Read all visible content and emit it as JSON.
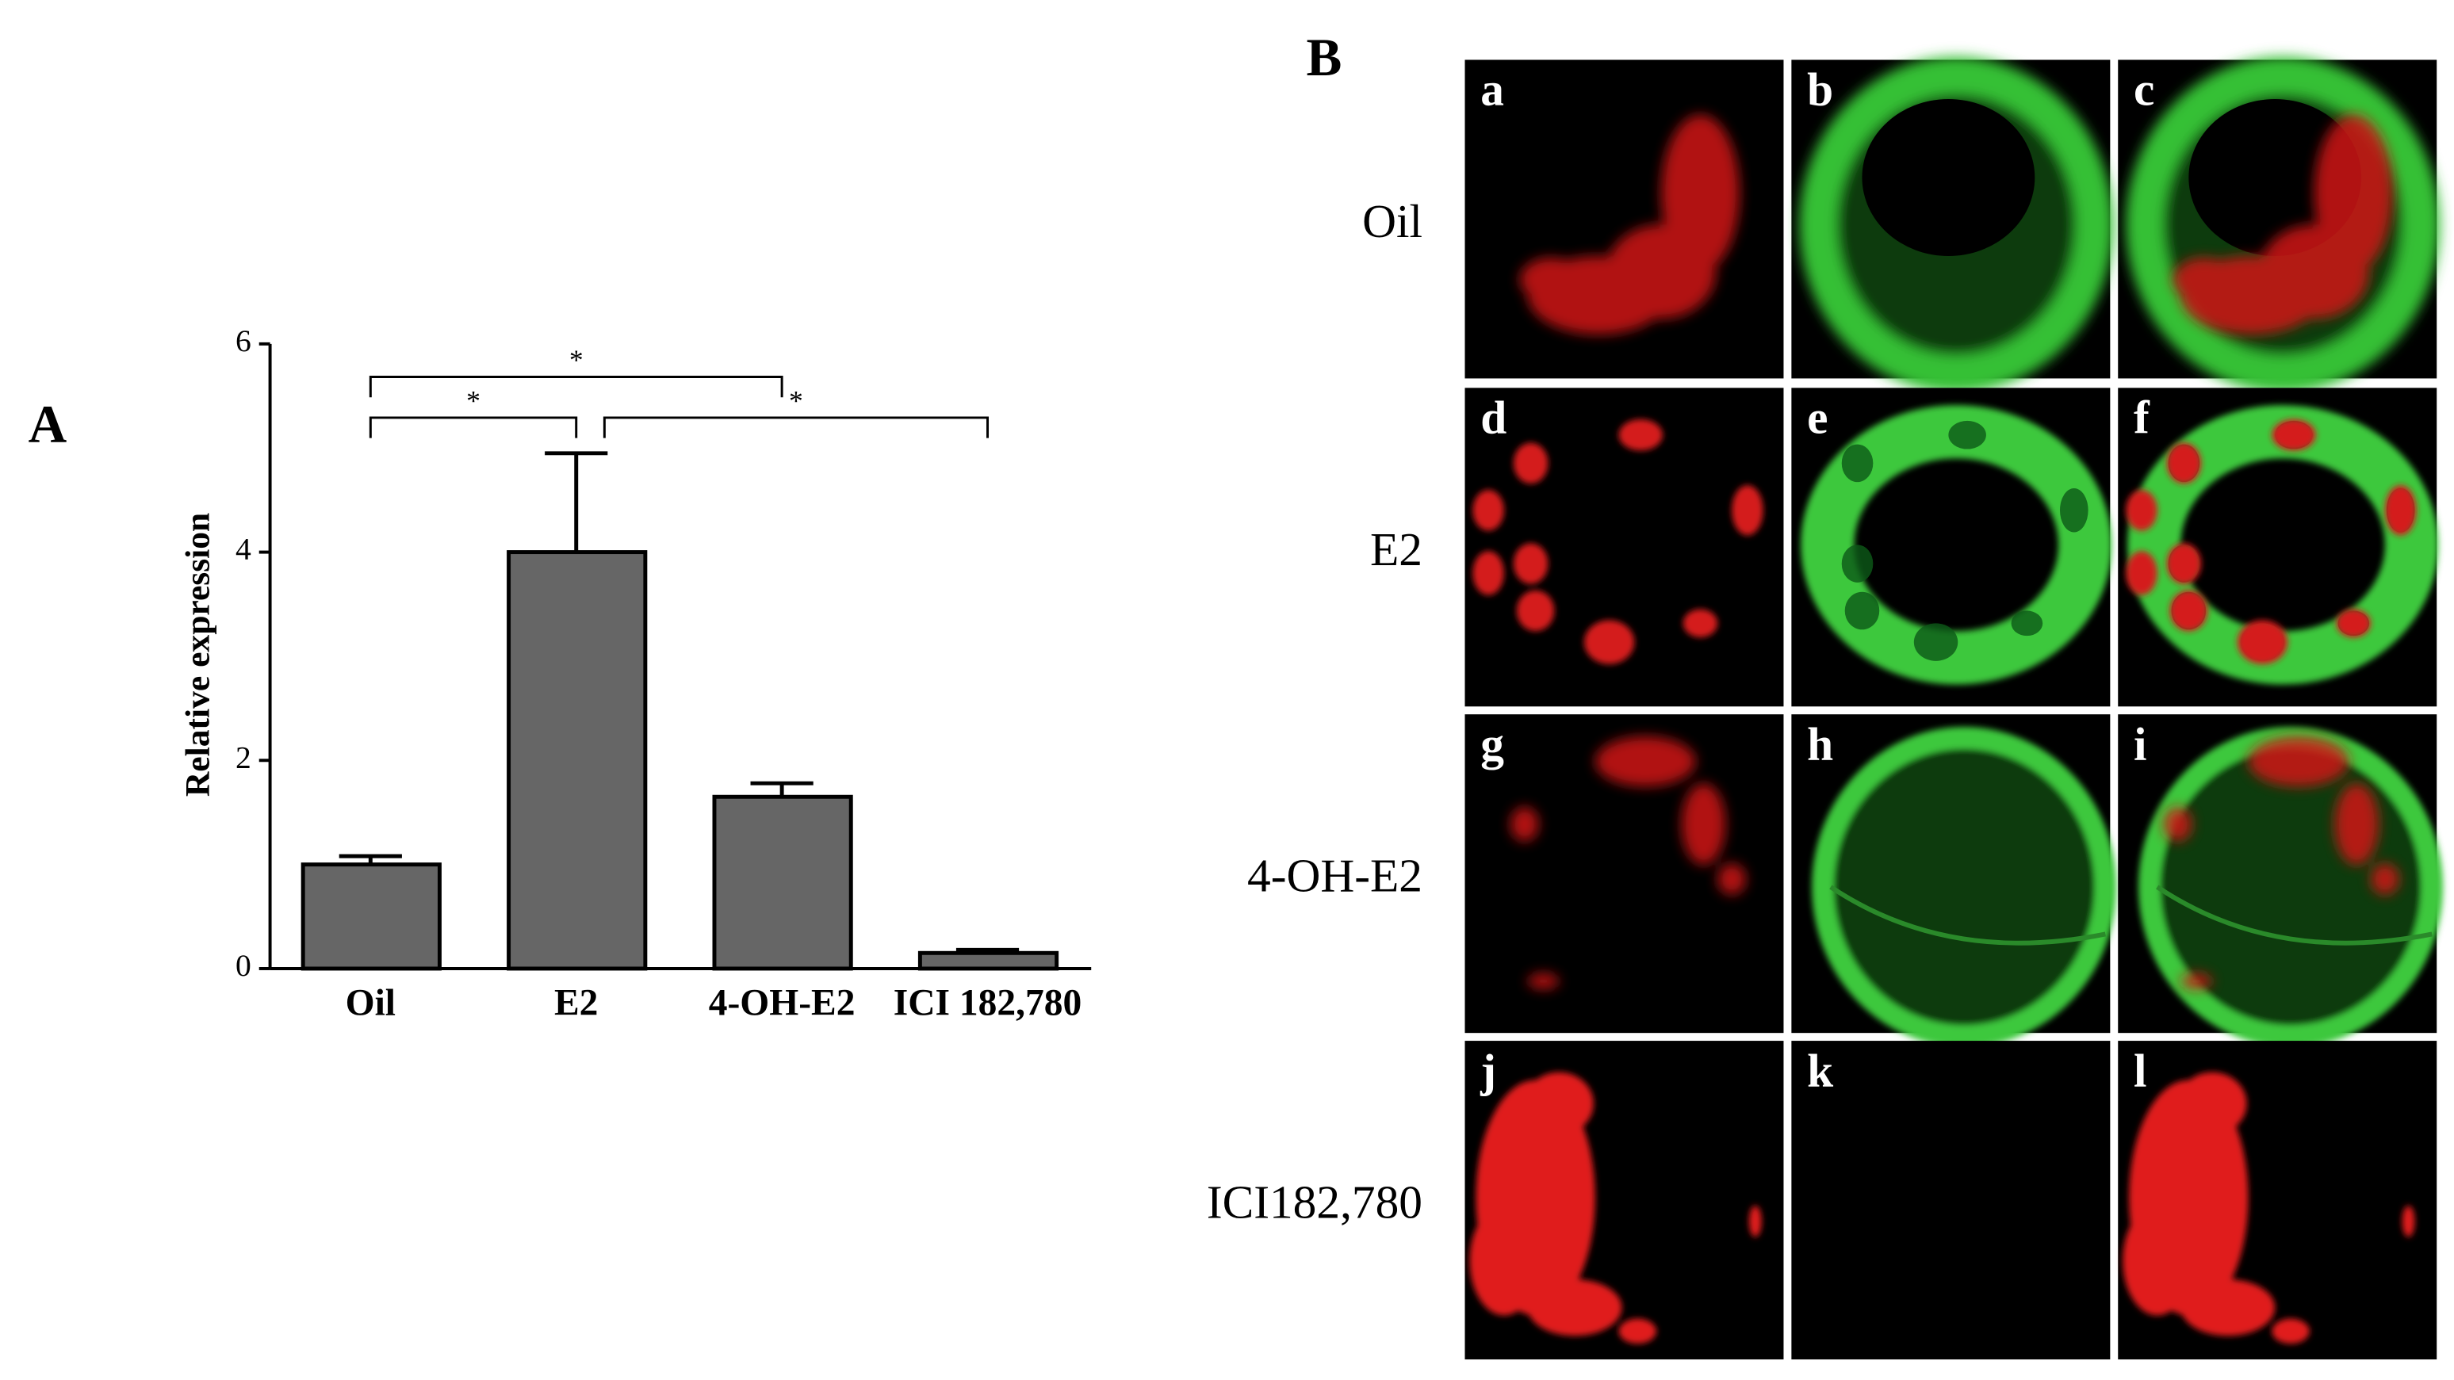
{
  "panel_labels": [
    "A",
    "B"
  ],
  "chart_data": {
    "type": "bar",
    "ylabel": "Relative expression",
    "categories": [
      "Oil",
      "E2",
      "4-OH-E2",
      "ICI 182,780"
    ],
    "values": [
      1.0,
      4.0,
      1.65,
      0.15
    ],
    "errors": [
      0.08,
      0.95,
      0.13,
      0.03
    ],
    "color": "#666666",
    "ylim": [
      0,
      6
    ],
    "yticks": [
      0,
      2,
      4,
      6
    ],
    "brackets": [
      {
        "pair": [
          "Oil",
          "E2"
        ],
        "label": "*"
      },
      {
        "pair": [
          "Oil",
          "4-OH-E2"
        ],
        "label": "*"
      },
      {
        "pair": [
          "E2",
          "ICI 182,780"
        ],
        "label": "*"
      }
    ]
  },
  "microscopy": {
    "rows": [
      "Oil",
      "E2",
      "4-OH-E2",
      "ICI182,780"
    ],
    "image_labels": [
      "a",
      "b",
      "c",
      "d",
      "e",
      "f",
      "g",
      "h",
      "i",
      "j",
      "k",
      "l"
    ]
  }
}
